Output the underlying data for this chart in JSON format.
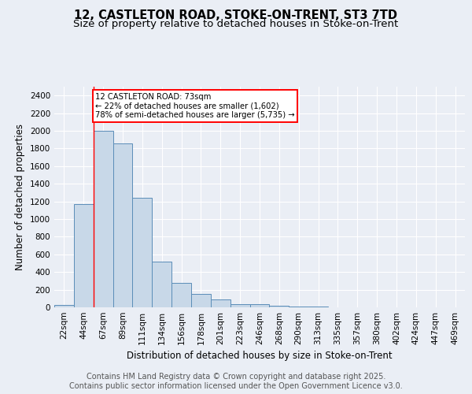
{
  "title_line1": "12, CASTLETON ROAD, STOKE-ON-TRENT, ST3 7TD",
  "title_line2": "Size of property relative to detached houses in Stoke-on-Trent",
  "xlabel": "Distribution of detached houses by size in Stoke-on-Trent",
  "ylabel": "Number of detached properties",
  "bin_labels": [
    "22sqm",
    "44sqm",
    "67sqm",
    "89sqm",
    "111sqm",
    "134sqm",
    "156sqm",
    "178sqm",
    "201sqm",
    "223sqm",
    "246sqm",
    "268sqm",
    "290sqm",
    "313sqm",
    "335sqm",
    "357sqm",
    "380sqm",
    "402sqm",
    "424sqm",
    "447sqm",
    "469sqm"
  ],
  "bar_values": [
    25,
    1170,
    2000,
    1860,
    1240,
    515,
    275,
    150,
    90,
    40,
    40,
    20,
    10,
    5,
    3,
    2,
    2,
    1,
    1,
    1,
    2
  ],
  "bar_color": "#c8d8e8",
  "bar_edge_color": "#5b8db8",
  "annotation_text": "12 CASTLETON ROAD: 73sqm\n← 22% of detached houses are smaller (1,602)\n78% of semi-detached houses are larger (5,735) →",
  "red_line_x": 1.5,
  "ylim": [
    0,
    2500
  ],
  "yticks": [
    0,
    200,
    400,
    600,
    800,
    1000,
    1200,
    1400,
    1600,
    1800,
    2000,
    2200,
    2400
  ],
  "footer_text": "Contains HM Land Registry data © Crown copyright and database right 2025.\nContains public sector information licensed under the Open Government Licence v3.0.",
  "background_color": "#eaeef5",
  "plot_bg_color": "#eaeef5",
  "grid_color": "#ffffff",
  "title_fontsize": 10.5,
  "subtitle_fontsize": 9.5,
  "label_fontsize": 8.5,
  "tick_fontsize": 7.5,
  "footer_fontsize": 7.0
}
